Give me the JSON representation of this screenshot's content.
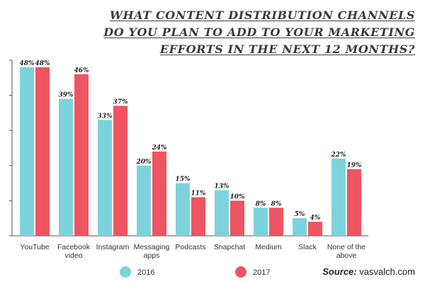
{
  "chart_data": {
    "type": "bar",
    "title": "WHAT CONTENT DISTRIBUTION CHANNELS DO YOU PLAN TO ADD TO YOUR MARKETING EFFORTS IN THE NEXT 12 MONTHS?",
    "title_lines": [
      "WHAT CONTENT DISTRIBUTION CHANNELS",
      "DO YOU PLAN TO ADD TO YOUR MARKETING",
      "EFFORTS IN THE NEXT 12 MONTHS?"
    ],
    "categories": [
      "YouTube",
      "Facebook video",
      "Instagram",
      "Messaging apps",
      "Podcasts",
      "Snapchat",
      "Medium",
      "Slack",
      "None of the above"
    ],
    "category_lines": [
      [
        "YouTube"
      ],
      [
        "Facebook",
        "video"
      ],
      [
        "Instagram"
      ],
      [
        "Messaging",
        "apps"
      ],
      [
        "Podcasts"
      ],
      [
        "Snapchat"
      ],
      [
        "Medium"
      ],
      [
        "Slack"
      ],
      [
        "None of the",
        "above"
      ]
    ],
    "series": [
      {
        "name": "2016",
        "values": [
          48,
          39,
          33,
          20,
          15,
          13,
          8,
          5,
          22
        ],
        "labels": [
          "48%",
          "39%",
          "33%",
          "20%",
          "15%",
          "13%",
          "8%",
          "5%",
          "22%"
        ],
        "color": "#7dd3dc"
      },
      {
        "name": "2017",
        "values": [
          48,
          46,
          37,
          24,
          11,
          10,
          8,
          4,
          19
        ],
        "labels": [
          "48%",
          "46%",
          "37%",
          "24%",
          "11%",
          "10%",
          "8%",
          "4%",
          "19%"
        ],
        "color": "#ef5461"
      }
    ],
    "ylim": [
      0,
      50
    ],
    "grid": false,
    "legend_position": "bottom"
  },
  "source": {
    "label": "Source:",
    "text": " vasvalch.com"
  }
}
